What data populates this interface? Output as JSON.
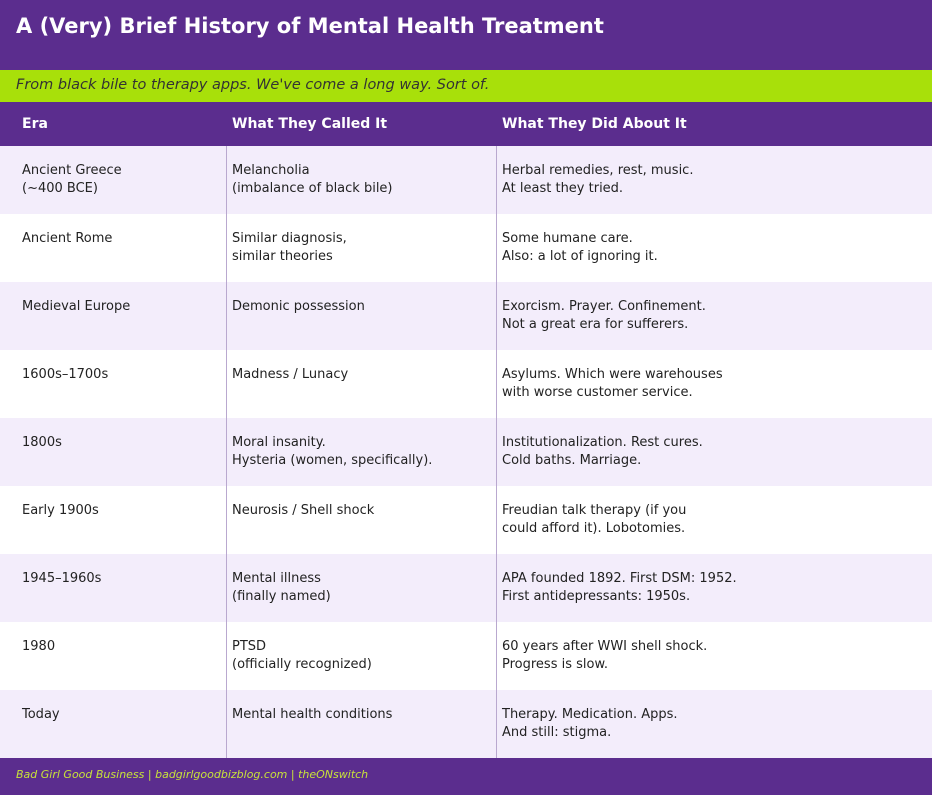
{
  "header": {
    "title": "A (Very) Brief History of Mental Health Treatment",
    "subtitle": "From black bile to therapy apps. We've come a long way. Sort of."
  },
  "table": {
    "columns": [
      "Era",
      "What They Called It",
      "What They Did About It"
    ],
    "rows": [
      [
        [
          "Ancient Greece",
          "(~400 BCE)"
        ],
        [
          "Melancholia",
          "(imbalance of black bile)"
        ],
        [
          "Herbal remedies, rest, music.",
          "At least they tried."
        ]
      ],
      [
        [
          "Ancient Rome"
        ],
        [
          "Similar diagnosis,",
          "similar theories"
        ],
        [
          "Some humane care.",
          "Also: a lot of ignoring it."
        ]
      ],
      [
        [
          "Medieval Europe"
        ],
        [
          "Demonic possession"
        ],
        [
          "Exorcism. Prayer. Confinement.",
          "Not a great era for sufferers."
        ]
      ],
      [
        [
          "1600s–1700s"
        ],
        [
          "Madness / Lunacy"
        ],
        [
          "Asylums. Which were warehouses",
          "with worse customer service."
        ]
      ],
      [
        [
          "1800s"
        ],
        [
          "Moral insanity.",
          "Hysteria (women, specifically)."
        ],
        [
          "Institutionalization. Rest cures.",
          "Cold baths. Marriage."
        ]
      ],
      [
        [
          "Early 1900s"
        ],
        [
          "Neurosis / Shell shock"
        ],
        [
          "Freudian talk therapy (if you",
          "could afford it). Lobotomies."
        ]
      ],
      [
        [
          "1945–1960s"
        ],
        [
          "Mental illness",
          "(finally named)"
        ],
        [
          "APA founded 1892. First DSM: 1952.",
          "First antidepressants: 1950s."
        ]
      ],
      [
        [
          "1980"
        ],
        [
          "PTSD",
          "(officially recognized)"
        ],
        [
          "60 years after WWI shell shock.",
          "Progress is slow."
        ]
      ],
      [
        [
          "Today"
        ],
        [
          "Mental health conditions"
        ],
        [
          "Therapy. Medication. Apps.",
          "And still: stigma."
        ]
      ]
    ]
  },
  "footer": {
    "text": "Bad Girl Good Business | badgirlgoodbizblog.com | theONswitch"
  }
}
